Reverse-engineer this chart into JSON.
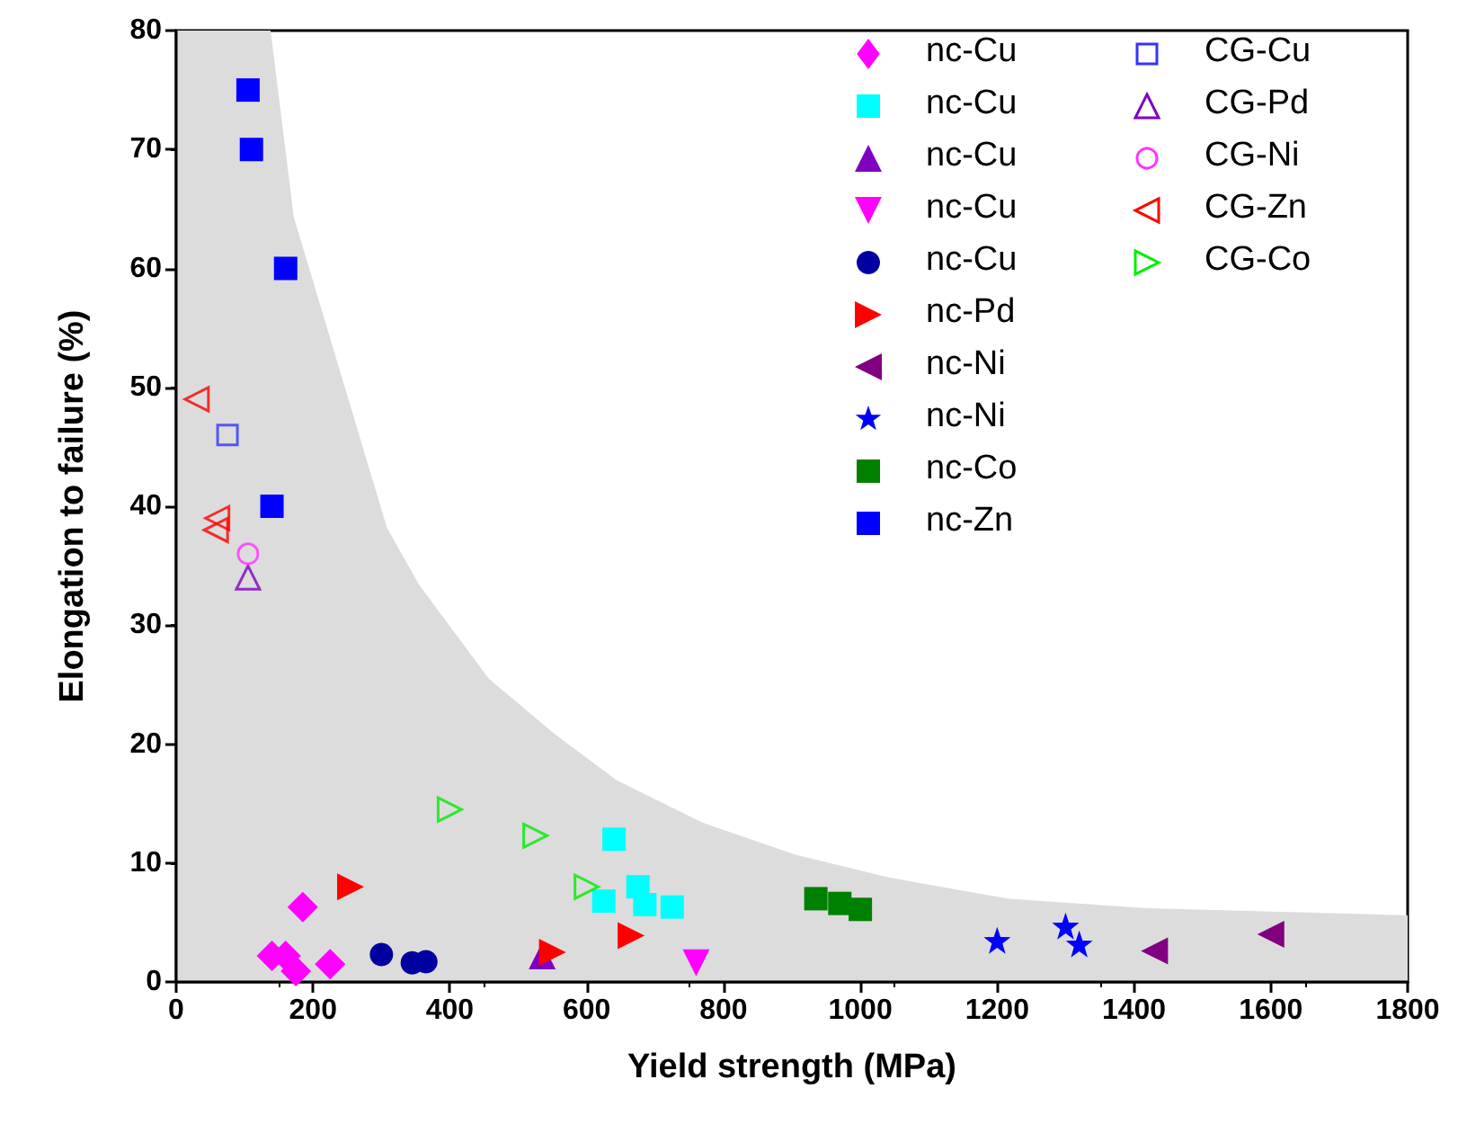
{
  "chart_data": {
    "type": "scatter",
    "xlabel": "Yield strength (MPa)",
    "ylabel": "Elongation to failure (%)",
    "xlim": [
      0,
      1800
    ],
    "xticks": [
      0,
      200,
      400,
      600,
      800,
      1000,
      1200,
      1400,
      1600,
      1800
    ],
    "ylim": [
      0,
      80
    ],
    "yticks": [
      0,
      10,
      20,
      30,
      40,
      50,
      60,
      70,
      80
    ],
    "grid": false,
    "legend": "top right",
    "series": [
      {
        "type": "area",
        "color": "#dcdcdc",
        "x": [
          0,
          138,
          172,
          308,
          355,
          457,
          552,
          643,
          769,
          905,
          1040,
          1217,
          1420,
          1800
        ],
        "values": [
          80,
          80,
          64.3,
          38.2,
          33.4,
          25.5,
          20.9,
          17,
          13.4,
          10.7,
          8.8,
          7,
          6.2,
          5.6
        ]
      },
      {
        "name": "nc-Cu",
        "color": "#ff00ff",
        "marker": "diamond",
        "x": [
          140,
          160,
          175,
          185,
          225
        ],
        "values": [
          2.2,
          2.2,
          0.9,
          6.3,
          1.5
        ]
      },
      {
        "name": "nc-Cu",
        "color": "#00ffff",
        "marker": "square",
        "x": [
          640,
          625,
          675,
          685,
          725
        ],
        "values": [
          12,
          6.8,
          8,
          6.5,
          6.3
        ]
      },
      {
        "name": "nc-Cu",
        "color": "#8000c0",
        "marker": "triangle",
        "x": [
          535
        ],
        "values": [
          2.2
        ]
      },
      {
        "name": "nc-Cu",
        "color": "#ff00ff",
        "marker": "triangle-down",
        "x": [
          760
        ],
        "values": [
          1.6
        ]
      },
      {
        "name": "nc-Cu",
        "color": "#0000a0",
        "marker": "circle",
        "x": [
          300,
          345,
          365
        ],
        "values": [
          2.3,
          1.6,
          1.7
        ]
      },
      {
        "name": "nc-Pd",
        "color": "#ff0000",
        "marker": "triangle-right",
        "x": [
          255,
          550,
          665
        ],
        "values": [
          8,
          2.5,
          3.9
        ]
      },
      {
        "name": "nc-Ni",
        "color": "#800080",
        "marker": "triangle-left",
        "x": [
          1430,
          1600
        ],
        "values": [
          2.6,
          4
        ]
      },
      {
        "name": "nc-Ni",
        "color": "#0000ff",
        "marker": "star",
        "x": [
          1200,
          1300,
          1320
        ],
        "values": [
          3.5,
          4.7,
          3.2
        ]
      },
      {
        "name": "nc-Co",
        "color": "#008000",
        "marker": "square",
        "x": [
          935,
          970,
          1000
        ],
        "values": [
          7,
          6.6,
          6.1
        ]
      },
      {
        "name": "nc-Zn",
        "color": "#0000ff",
        "marker": "square",
        "x": [
          105,
          110,
          160,
          140
        ],
        "values": [
          75,
          70,
          60,
          40
        ]
      },
      {
        "name": "CG-Cu",
        "color": "#3333ff",
        "marker": "square-open",
        "x": [
          75
        ],
        "values": [
          46
        ]
      },
      {
        "name": "CG-Pd",
        "color": "#8000c0",
        "marker": "triangle-open",
        "x": [
          105
        ],
        "values": [
          34
        ]
      },
      {
        "name": "CG-Ni",
        "color": "#ff33ff",
        "marker": "circle-open",
        "x": [
          105
        ],
        "values": [
          36
        ]
      },
      {
        "name": "CG-Zn",
        "color": "#ff0000",
        "marker": "triangle-left-open",
        "x": [
          30,
          60,
          58
        ],
        "values": [
          49,
          39,
          38
        ]
      },
      {
        "name": "CG-Co",
        "color": "#00ee00",
        "marker": "triangle-right-open",
        "x": [
          400,
          525,
          600
        ],
        "values": [
          14.5,
          12.3,
          8
        ]
      }
    ]
  }
}
